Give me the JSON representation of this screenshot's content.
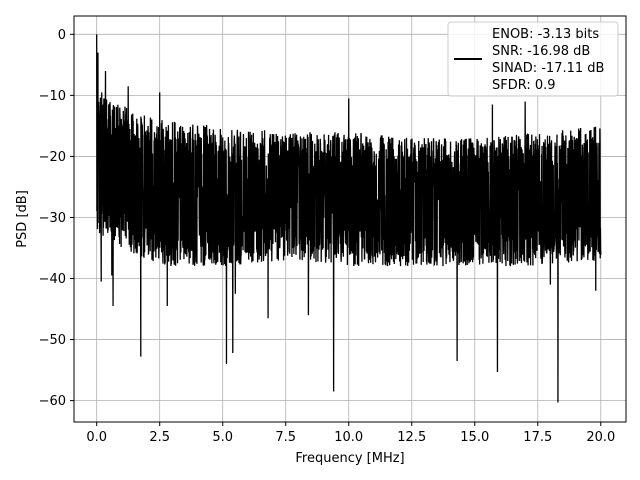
{
  "chart_data": {
    "type": "line",
    "title": "",
    "xlabel": "Frequency [MHz]",
    "ylabel": "PSD [dB]",
    "xlim": [
      -0.9,
      21.0
    ],
    "ylim": [
      -63.5,
      3.0
    ],
    "xticks": [
      0.0,
      2.5,
      5.0,
      7.5,
      10.0,
      12.5,
      15.0,
      17.5,
      20.0
    ],
    "xtick_labels": [
      "0.0",
      "2.5",
      "5.0",
      "7.5",
      "10.0",
      "12.5",
      "15.0",
      "17.5",
      "20.0"
    ],
    "yticks": [
      0,
      -10,
      -20,
      -30,
      -40,
      -50,
      -60
    ],
    "ytick_labels": [
      "0",
      "−10",
      "−20",
      "−30",
      "−40",
      "−50",
      "−60"
    ],
    "grid": true,
    "legend": {
      "placement": "top-right",
      "entries": [
        "ENOB: -3.13 bits",
        "SNR: -16.98 dB",
        "SINAD: -17.11 dB",
        "SFDR: 0.9"
      ]
    },
    "series": [
      {
        "color": "#000000",
        "x_start": 0.0,
        "x_end": 20.0,
        "peaks": [
          {
            "x": 0.0,
            "y": 0.0
          },
          {
            "x": 0.05,
            "y": -3.0
          },
          {
            "x": 0.12,
            "y": -18.0
          },
          {
            "x": 0.2,
            "y": -9.5
          },
          {
            "x": 0.35,
            "y": -6.0
          },
          {
            "x": 0.5,
            "y": -15.5
          },
          {
            "x": 1.25,
            "y": -8.5
          },
          {
            "x": 2.5,
            "y": -9.5
          },
          {
            "x": 10.0,
            "y": -10.5
          },
          {
            "x": 15.7,
            "y": -11.5
          },
          {
            "x": 17.0,
            "y": -11.0
          },
          {
            "x": 19.8,
            "y": -14.5
          }
        ],
        "dips": [
          {
            "x": 0.18,
            "y": -40.5
          },
          {
            "x": 0.6,
            "y": -39.5
          },
          {
            "x": 0.65,
            "y": -44.5
          },
          {
            "x": 1.75,
            "y": -52.8
          },
          {
            "x": 2.8,
            "y": -44.5
          },
          {
            "x": 5.15,
            "y": -54.0
          },
          {
            "x": 5.4,
            "y": -52.2
          },
          {
            "x": 5.5,
            "y": -42.5
          },
          {
            "x": 6.8,
            "y": -46.5
          },
          {
            "x": 8.4,
            "y": -46.0
          },
          {
            "x": 9.4,
            "y": -58.5
          },
          {
            "x": 14.3,
            "y": -53.5
          },
          {
            "x": 15.9,
            "y": -55.3
          },
          {
            "x": 18.3,
            "y": -60.3
          },
          {
            "x": 18.0,
            "y": -41.0
          },
          {
            "x": 19.8,
            "y": -42.0
          }
        ],
        "upper_envelope": [
          [
            0.0,
            -10
          ],
          [
            2.5,
            -14
          ],
          [
            5.0,
            -15
          ],
          [
            7.5,
            -16
          ],
          [
            10.0,
            -16
          ],
          [
            12.5,
            -17
          ],
          [
            15.0,
            -17
          ],
          [
            17.5,
            -16
          ],
          [
            20.0,
            -15
          ]
        ],
        "lower_envelope": [
          [
            0.0,
            -33
          ],
          [
            2.5,
            -38
          ],
          [
            5.0,
            -38
          ],
          [
            7.5,
            -37
          ],
          [
            10.0,
            -38
          ],
          [
            12.5,
            -38
          ],
          [
            15.0,
            -38
          ],
          [
            17.5,
            -38
          ],
          [
            20.0,
            -37
          ]
        ]
      }
    ]
  }
}
